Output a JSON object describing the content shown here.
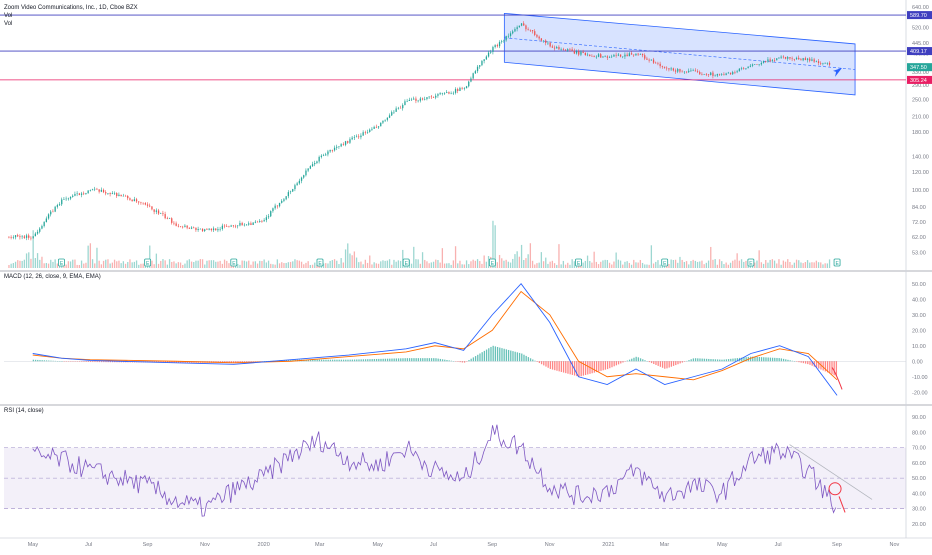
{
  "header": {
    "symbol_line": "Zoom Video Communications, Inc., 1D, Cboe BZX",
    "vol_label": "Vol",
    "vol_label_2": "Vol"
  },
  "panes": {
    "macd_title": "MACD (12, 26, close, 9, EMA, EMA)",
    "rsi_title": "RSI (14, close)"
  },
  "colors": {
    "up": "#26a69a",
    "down": "#ef5350",
    "macd": "#2962ff",
    "signal": "#ff6d00",
    "rsi": "#7e57c2",
    "channel": "#2962ff",
    "hline_blue": "#3f3fbf",
    "hline_red": "#e91e63",
    "drawing_red": "#f23645",
    "hist_up": "#26a69a",
    "hist_down": "#ff5252"
  },
  "chart_data": [
    {
      "type": "candlestick",
      "name": "price",
      "scale": "log",
      "y_ticks": [
        "640.00",
        "580.00",
        "520.00",
        "445.00",
        "400.00",
        "330.00",
        "290.00",
        "250.00",
        "210.00",
        "180.00",
        "140.00",
        "120.00",
        "100.00",
        "84.00",
        "72.00",
        "62.00",
        "53.00"
      ],
      "y_tick_values": [
        640,
        580,
        520,
        445,
        400,
        330,
        290,
        250,
        210,
        180,
        140,
        120,
        100,
        84,
        72,
        62,
        53
      ],
      "price_labels": [
        {
          "text": "589.70",
          "value": 589.7,
          "color": "#3f3fbf"
        },
        {
          "text": "409.17",
          "value": 409.17,
          "color": "#3f3fbf"
        },
        {
          "text": "347.50",
          "value": 347.5,
          "color": "#26a69a"
        },
        {
          "text": "305.24",
          "value": 305.24,
          "color": "#e91e63"
        }
      ],
      "horizontal_lines": [
        589.7,
        409.17,
        305.24
      ],
      "channel": {
        "upper": [
          [
            "2020-09",
            600
          ],
          [
            "2021-09",
            440
          ]
        ],
        "lower": [
          [
            "2020-09",
            365
          ],
          [
            "2021-09",
            262
          ]
        ]
      },
      "anchors": [
        [
          "2019-05",
          62
        ],
        [
          "2019-06",
          90
        ],
        [
          "2019-07",
          100
        ],
        [
          "2019-08",
          95
        ],
        [
          "2019-09",
          84
        ],
        [
          "2019-10",
          70
        ],
        [
          "2019-11",
          66
        ],
        [
          "2019-12",
          70
        ],
        [
          "2020-01",
          72
        ],
        [
          "2020-02",
          100
        ],
        [
          "2020-03",
          140
        ],
        [
          "2020-04",
          165
        ],
        [
          "2020-05",
          190
        ],
        [
          "2020-06",
          245
        ],
        [
          "2020-07",
          260
        ],
        [
          "2020-08",
          280
        ],
        [
          "2020-09",
          420
        ],
        [
          "2020-10",
          535
        ],
        [
          "2020-11",
          430
        ],
        [
          "2020-12",
          400
        ],
        [
          "2021-01",
          385
        ],
        [
          "2021-02",
          400
        ],
        [
          "2021-03",
          340
        ],
        [
          "2021-04",
          330
        ],
        [
          "2021-05",
          320
        ],
        [
          "2021-06",
          350
        ],
        [
          "2021-07",
          385
        ],
        [
          "2021-08",
          375
        ],
        [
          "2021-09",
          350
        ]
      ],
      "earnings_markers": [
        "E",
        "E",
        "E",
        "E",
        "E",
        "E",
        "E",
        "E",
        "E",
        "E"
      ],
      "earnings_dates": [
        "2019-06",
        "2019-09",
        "2019-12",
        "2020-03",
        "2020-06",
        "2020-09",
        "2020-12",
        "2021-03",
        "2021-06",
        "2021-09"
      ],
      "volume_spikes": [
        [
          "2019-05",
          0.6
        ],
        [
          "2020-09",
          0.9
        ],
        [
          "2020-04",
          0.4
        ],
        [
          "2020-10",
          0.35
        ]
      ]
    },
    {
      "type": "line",
      "name": "MACD",
      "y_ticks": [
        "50.00",
        "40.00",
        "30.00",
        "20.00",
        "10.00",
        "0.00",
        "-10.00",
        "-20.00"
      ],
      "y_tick_values": [
        50,
        40,
        30,
        20,
        10,
        0,
        -10,
        -20
      ],
      "ylim": [
        -25,
        55
      ],
      "series": [
        {
          "key": "macd",
          "points": [
            [
              "2019-05",
              5
            ],
            [
              "2019-06",
              2
            ],
            [
              "2019-07",
              0.5
            ],
            [
              "2019-10",
              -1
            ],
            [
              "2019-12",
              -2
            ],
            [
              "2020-02",
              1
            ],
            [
              "2020-04",
              4
            ],
            [
              "2020-06",
              8
            ],
            [
              "2020-07",
              12
            ],
            [
              "2020-08",
              7
            ],
            [
              "2020-09",
              30
            ],
            [
              "2020-10",
              50
            ],
            [
              "2020-11",
              25
            ],
            [
              "2020-12",
              -10
            ],
            [
              "2021-01",
              -15
            ],
            [
              "2021-02",
              -5
            ],
            [
              "2021-03",
              -15
            ],
            [
              "2021-04",
              -10
            ],
            [
              "2021-05",
              -5
            ],
            [
              "2021-06",
              5
            ],
            [
              "2021-07",
              10
            ],
            [
              "2021-08",
              3
            ],
            [
              "2021-09",
              -22
            ]
          ]
        },
        {
          "key": "signal",
          "points": [
            [
              "2019-05",
              4
            ],
            [
              "2019-06",
              2
            ],
            [
              "2019-07",
              1
            ],
            [
              "2019-10",
              0
            ],
            [
              "2019-12",
              -1
            ],
            [
              "2020-02",
              0
            ],
            [
              "2020-04",
              3
            ],
            [
              "2020-06",
              6
            ],
            [
              "2020-07",
              10
            ],
            [
              "2020-08",
              8
            ],
            [
              "2020-09",
              20
            ],
            [
              "2020-10",
              45
            ],
            [
              "2020-11",
              30
            ],
            [
              "2020-12",
              0
            ],
            [
              "2021-01",
              -10
            ],
            [
              "2021-02",
              -8
            ],
            [
              "2021-03",
              -10
            ],
            [
              "2021-04",
              -12
            ],
            [
              "2021-05",
              -6
            ],
            [
              "2021-06",
              2
            ],
            [
              "2021-07",
              8
            ],
            [
              "2021-08",
              5
            ],
            [
              "2021-09",
              -12
            ]
          ]
        }
      ]
    },
    {
      "type": "line",
      "name": "RSI",
      "y_ticks": [
        "90.00",
        "80.00",
        "70.00",
        "60.00",
        "50.00",
        "40.00",
        "30.00",
        "20.00"
      ],
      "y_tick_values": [
        90,
        80,
        70,
        60,
        50,
        40,
        30,
        20
      ],
      "ylim": [
        14,
        96
      ],
      "bands": [
        70,
        50,
        30
      ],
      "points": [
        [
          "2019-05",
          65
        ],
        [
          "2019-06",
          62
        ],
        [
          "2019-07",
          55
        ],
        [
          "2019-08",
          50
        ],
        [
          "2019-09",
          45
        ],
        [
          "2019-10",
          35
        ],
        [
          "2019-11",
          30
        ],
        [
          "2019-12",
          42
        ],
        [
          "2020-01",
          50
        ],
        [
          "2020-02",
          65
        ],
        [
          "2020-03",
          75
        ],
        [
          "2020-04",
          62
        ],
        [
          "2020-05",
          58
        ],
        [
          "2020-06",
          70
        ],
        [
          "2020-07",
          55
        ],
        [
          "2020-08",
          48
        ],
        [
          "2020-09",
          80
        ],
        [
          "2020-10",
          70
        ],
        [
          "2020-11",
          45
        ],
        [
          "2020-12",
          38
        ],
        [
          "2021-01",
          42
        ],
        [
          "2021-02",
          55
        ],
        [
          "2021-03",
          38
        ],
        [
          "2021-04",
          45
        ],
        [
          "2021-05",
          40
        ],
        [
          "2021-06",
          62
        ],
        [
          "2021-07",
          68
        ],
        [
          "2021-08",
          55
        ],
        [
          "2021-09",
          30
        ]
      ]
    }
  ],
  "x_axis": {
    "labels": [
      "May",
      "Jul",
      "Sep",
      "Nov",
      "2020",
      "Mar",
      "May",
      "Jul",
      "Sep",
      "Nov",
      "2021",
      "Mar",
      "May",
      "Jul",
      "Sep",
      "Nov"
    ],
    "dates": [
      "2019-05",
      "2019-07",
      "2019-09",
      "2019-11",
      "2020-01",
      "2020-03",
      "2020-05",
      "2020-07",
      "2020-09",
      "2020-11",
      "2021-01",
      "2021-03",
      "2021-05",
      "2021-07",
      "2021-09",
      "2021-11"
    ]
  }
}
